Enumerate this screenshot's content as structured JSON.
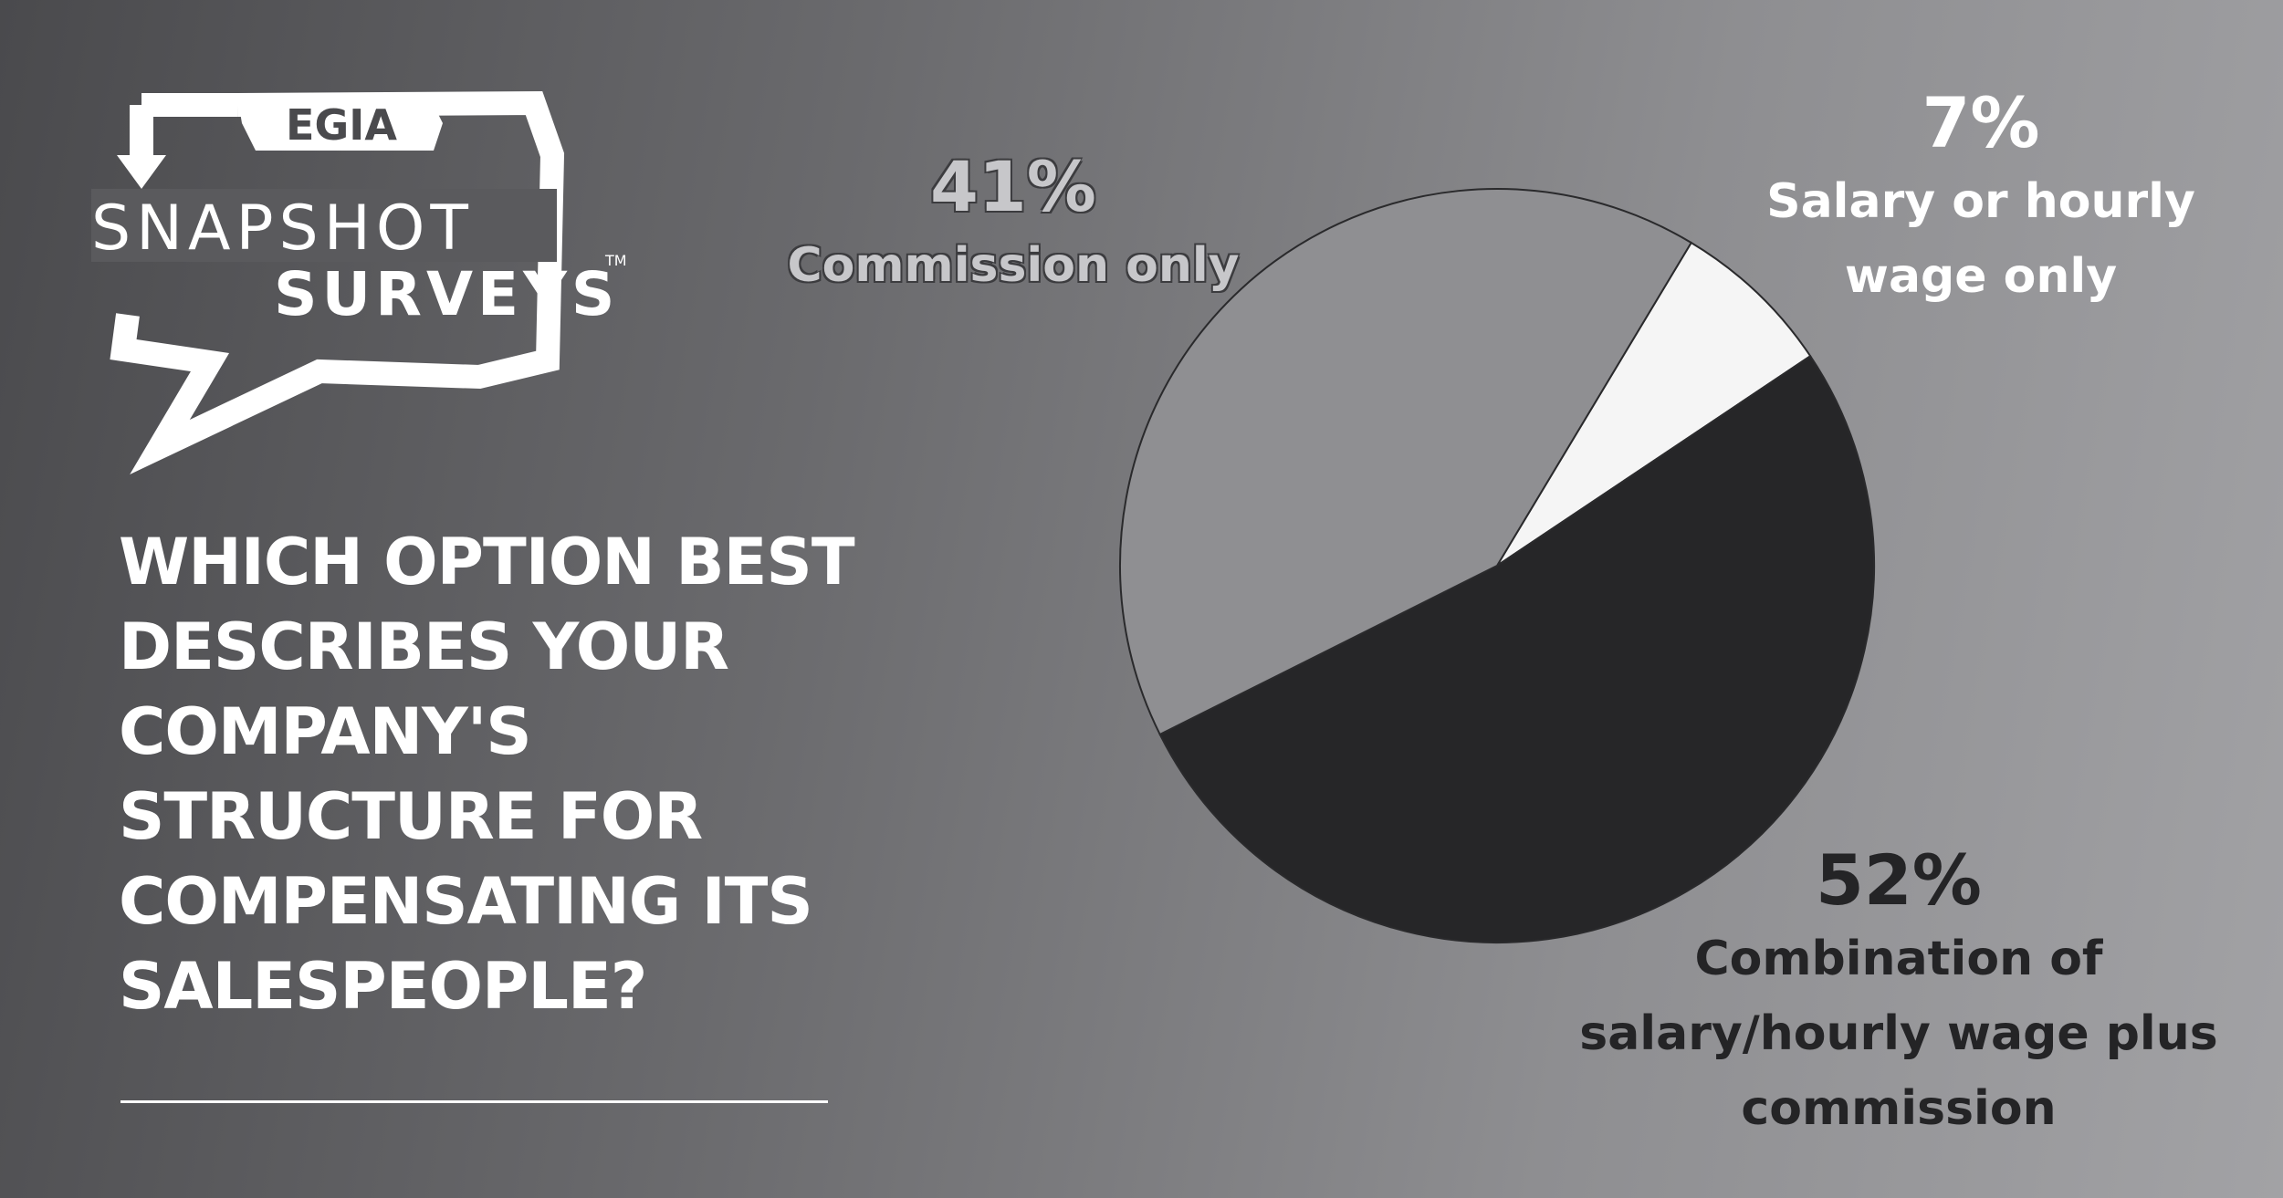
{
  "logo": {
    "brand": "EGIA",
    "line1": "SNAPSHOT",
    "line2": "SURVEYS",
    "tm": "TM"
  },
  "question": "WHICH OPTION BEST DESCRIBES YOUR COMPANY'S STRUCTURE FOR COMPENSATING ITS SALESPEOPLE?",
  "chart_data": {
    "type": "pie",
    "title": "",
    "slices": [
      {
        "key": "salary",
        "label": "Salary or hourly wage only",
        "pct_label": "7%",
        "value": 7,
        "color": "#f5f5f5"
      },
      {
        "key": "combo",
        "label": "Combination of salary/hourly wage plus commission",
        "pct_label": "52%",
        "value": 52,
        "color": "#262628"
      },
      {
        "key": "commission",
        "label": "Commission only",
        "pct_label": "41%",
        "value": 41,
        "color": "#8f8f92"
      }
    ],
    "legend": "none"
  }
}
